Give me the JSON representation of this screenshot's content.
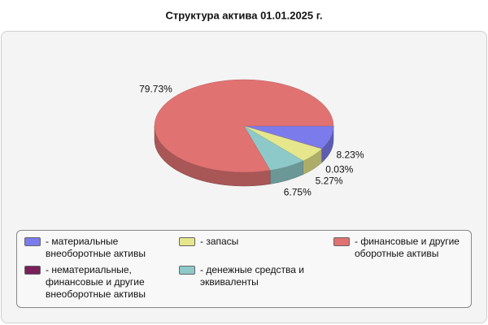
{
  "chart_data": {
    "type": "pie",
    "title": "Структура актива 01.01.2025 г.",
    "categories": [
      "- материальные внеоборотные активы",
      "- нематериальные, финансовые и другие внеоборотные активы",
      "- запасы",
      "- денежные средства и эквиваленты",
      "- финансовые и другие оборотные активы"
    ],
    "values": [
      8.23,
      0.03,
      5.27,
      6.75,
      79.73
    ],
    "value_labels": [
      "8.23%",
      "0.03%",
      "5.27%",
      "6.75%",
      "79.73%"
    ],
    "colors": [
      "#7b7bec",
      "#7a1f5c",
      "#e6e68c",
      "#8ec9c9",
      "#e07272"
    ]
  }
}
